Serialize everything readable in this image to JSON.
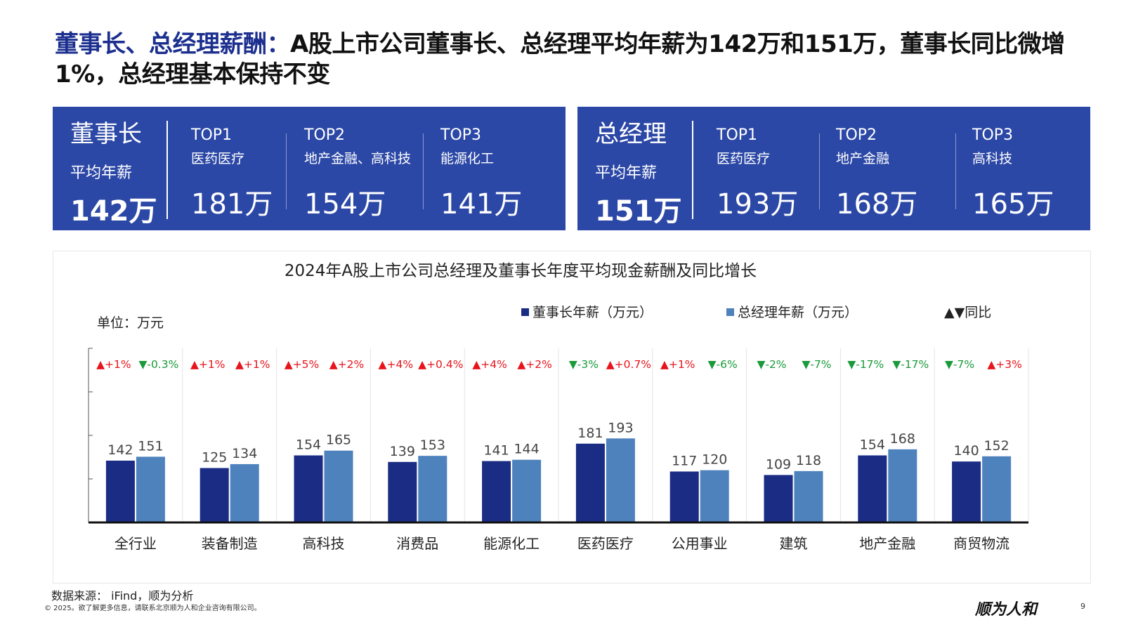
{
  "header": {
    "title_highlight": "董事长、总经理薪酬：",
    "title_rest": "A股上市公司董事长、总经理平均年薪为142万和151万，董事长同比微增1%，总经理基本保持不变"
  },
  "chairman_panel": {
    "role": "董事长",
    "avg_label": "平均年薪",
    "avg_value": "142万",
    "tops": [
      {
        "rank": "TOP1",
        "industry": "医药医疗",
        "value": "181万"
      },
      {
        "rank": "TOP2",
        "industry": "地产金融、高科技",
        "value": "154万"
      },
      {
        "rank": "TOP3",
        "industry": "能源化工",
        "value": "141万"
      }
    ]
  },
  "gm_panel": {
    "role": "总经理",
    "avg_label": "平均年薪",
    "avg_value": "151万",
    "tops": [
      {
        "rank": "TOP1",
        "industry": "医药医疗",
        "value": "193万"
      },
      {
        "rank": "TOP2",
        "industry": "地产金融",
        "value": "168万"
      },
      {
        "rank": "TOP3",
        "industry": "高科技",
        "value": "165万"
      }
    ]
  },
  "chart_data": {
    "type": "bar",
    "title": "2024年A股上市公司总经理及董事长年度平均现金薪酬及同比增长",
    "unit_label": "单位：万元",
    "legend": [
      "董事长年薪（万元）",
      "总经理年薪（万元）",
      "▲▼同比"
    ],
    "legend_placement": "top",
    "categories": [
      "全行业",
      "装备制造",
      "高科技",
      "消费品",
      "能源化工",
      "医药医疗",
      "公用事业",
      "建筑",
      "地产金融",
      "商贸物流"
    ],
    "series": [
      {
        "name": "董事长年薪（万元）",
        "color": "#1b2c84",
        "values": [
          142,
          125,
          154,
          139,
          141,
          181,
          117,
          109,
          154,
          140
        ]
      },
      {
        "name": "总经理年薪（万元）",
        "color": "#4e82bd",
        "values": [
          151,
          134,
          165,
          153,
          144,
          193,
          120,
          118,
          168,
          152
        ]
      }
    ],
    "yoy": {
      "chairman": [
        "▲+1%",
        "▲+1%",
        "▲+5%",
        "▲+4%",
        "▲+4%",
        "▼-3%",
        "▲+1%",
        "▼-2%",
        "▼-17%",
        "▼-7%"
      ],
      "gm": [
        "▼-0.3%",
        "▲+1%",
        "▲+2%",
        "▲+0.4%",
        "▲+2%",
        "▲+0.7%",
        "▼-6%",
        "▼-7%",
        "▼-17%",
        "▲+3%"
      ]
    },
    "colors": {
      "up": "#e8141c",
      "down": "#1a9a3a",
      "panel": "#2c48a6"
    },
    "ylim": [
      0,
      400
    ],
    "grid": false
  },
  "footer": {
    "source": "数据来源： iFind，顺为分析",
    "copyright": "© 2025。欲了解更多信息，请联系北京顺为人和企业咨询有限公司。",
    "brand": "顺为人和",
    "page": "9"
  }
}
